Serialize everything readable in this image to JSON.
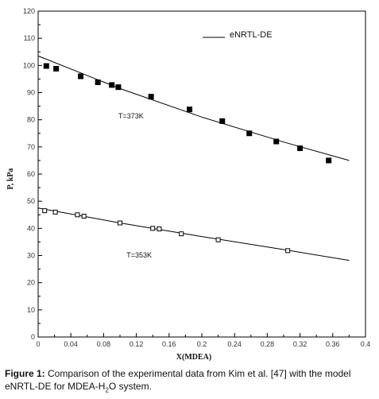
{
  "chart_data": {
    "type": "scatter",
    "xlabel": "X(MDEA)",
    "ylabel": "P, kPa",
    "xlim": [
      0,
      0.4
    ],
    "ylim": [
      0,
      120
    ],
    "x_ticks": [
      "0",
      "0.04",
      "0.08",
      "0.12",
      "0.16",
      "0.2",
      "0.24",
      "0.28",
      "0.32",
      "0.36",
      "0.4"
    ],
    "y_ticks": [
      "0",
      "10",
      "20",
      "30",
      "40",
      "50",
      "60",
      "70",
      "80",
      "90",
      "100",
      "110",
      "120"
    ],
    "legend": {
      "label": "eNRTL-DE",
      "placement": "top-right"
    },
    "series": [
      {
        "marker": "filled-square",
        "color": "#000000",
        "x": [
          0.01,
          0.022,
          0.052,
          0.073,
          0.09,
          0.098,
          0.138,
          0.185,
          0.225,
          0.258,
          0.291,
          0.32,
          0.355
        ],
        "y": [
          99.8,
          98.8,
          96,
          93.8,
          92.8,
          92,
          88.5,
          83.8,
          79.5,
          75,
          72,
          69.5,
          65
        ]
      },
      {
        "marker": "open-square",
        "color": "#000000",
        "x": [
          0.008,
          0.021,
          0.048,
          0.056,
          0.1,
          0.14,
          0.148,
          0.175,
          0.22,
          0.305
        ],
        "y": [
          46.5,
          46,
          45,
          44.5,
          42,
          40,
          39.8,
          38,
          35.8,
          31.8
        ]
      }
    ],
    "model_curves": [
      {
        "x": [
          0,
          0.1,
          0.2,
          0.3,
          0.38
        ],
        "y": [
          103.5,
          91.5,
          81,
          71.8,
          65
        ]
      },
      {
        "x": [
          0,
          0.1,
          0.2,
          0.3,
          0.38
        ],
        "y": [
          47.5,
          42,
          37,
          32.2,
          28.2
        ]
      }
    ],
    "annotations": [
      {
        "text": "T=373K",
        "x": 0.098,
        "y": 80.5
      },
      {
        "text": "T=353K",
        "x": 0.108,
        "y": 29.2
      }
    ]
  },
  "caption": {
    "label": "Figure 1:",
    "text_1": " Comparison of the experimental data from Kim et al. [47] with  the model  eNRTL-DE for MDEA-H",
    "sub": "2",
    "text_2": "O system."
  }
}
